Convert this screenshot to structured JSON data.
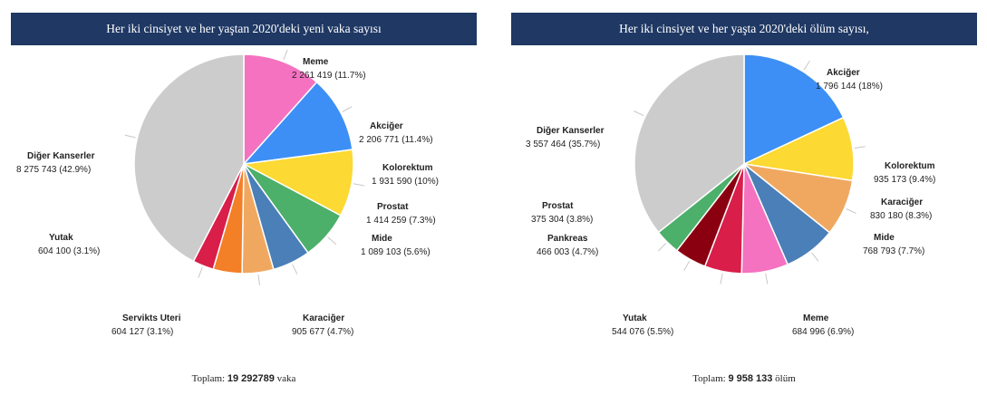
{
  "chart_data": [
    {
      "type": "pie",
      "title": "Her iki cinsiyet ve her yaştan 2020'deki yeni vaka sayısı",
      "total_prefix": "Toplam:",
      "total_value": "19 292789",
      "total_suffix": "vaka",
      "slices": [
        {
          "name": "Meme",
          "value": 2261419,
          "label": "2 261 419 (11.7%)",
          "color": "#f472c0"
        },
        {
          "name": "Akciğer",
          "value": 2206771,
          "label": "2 206 771 (11.4%)",
          "color": "#3d8ff5"
        },
        {
          "name": "Kolorektum",
          "value": 1931590,
          "label": "1 931 590 (10%)",
          "color": "#fcd933"
        },
        {
          "name": "Prostat",
          "value": 1414259,
          "label": "1 414 259 (7.3%)",
          "color": "#4caf6a"
        },
        {
          "name": "Mide",
          "value": 1089103,
          "label": "1 089 103 (5.6%)",
          "color": "#4a7fb8"
        },
        {
          "name": "Karaciğer",
          "value": 905677,
          "label": "905 677 (4.7%)",
          "color": "#f0a860"
        },
        {
          "name": "",
          "value": 830180,
          "label": "",
          "color": "#f37f27"
        },
        {
          "name": "Servikts Uteri",
          "value": 604127,
          "label": "604 127 (3.1%)",
          "color": "#d81e49"
        },
        {
          "name": "Diğer Kanserler",
          "value": 8275743,
          "label": "8 275 743 (42.9%)",
          "color": "#cccccc"
        }
      ],
      "extra_labels": [
        {
          "name": "Yutak",
          "label": "604 100 (3.1%)"
        }
      ]
    },
    {
      "type": "pie",
      "title": "Her iki cinsiyet ve her yaşta 2020'deki ölüm sayısı,",
      "total_prefix": "Toplam:",
      "total_value": "9 958 133",
      "total_suffix": "ölüm",
      "slices": [
        {
          "name": "Akciğer",
          "value": 1796144,
          "label": "1 796 144 (18%)",
          "color": "#3d8ff5"
        },
        {
          "name": "Kolorektum",
          "value": 935173,
          "label": "935 173 (9.4%)",
          "color": "#fcd933"
        },
        {
          "name": "Karaciğer",
          "value": 830180,
          "label": "830 180 (8.3%)",
          "color": "#f0a860"
        },
        {
          "name": "Mide",
          "value": 768793,
          "label": "768 793 (7.7%)",
          "color": "#4a7fb8"
        },
        {
          "name": "Meme",
          "value": 684996,
          "label": "684 996 (6.9%)",
          "color": "#f472c0"
        },
        {
          "name": "Yutak",
          "value": 544076,
          "label": "544 076 (5.5%)",
          "color": "#d81e49"
        },
        {
          "name": "Pankreas",
          "value": 466003,
          "label": "466 003 (4.7%)",
          "color": "#8b0010"
        },
        {
          "name": "Prostat",
          "value": 375304,
          "label": "375 304 (3.8%)",
          "color": "#4caf6a"
        },
        {
          "name": "Diğer Kanserler",
          "value": 3557464,
          "label": "3 557 464 (35.7%)",
          "color": "#cccccc"
        }
      ]
    }
  ]
}
